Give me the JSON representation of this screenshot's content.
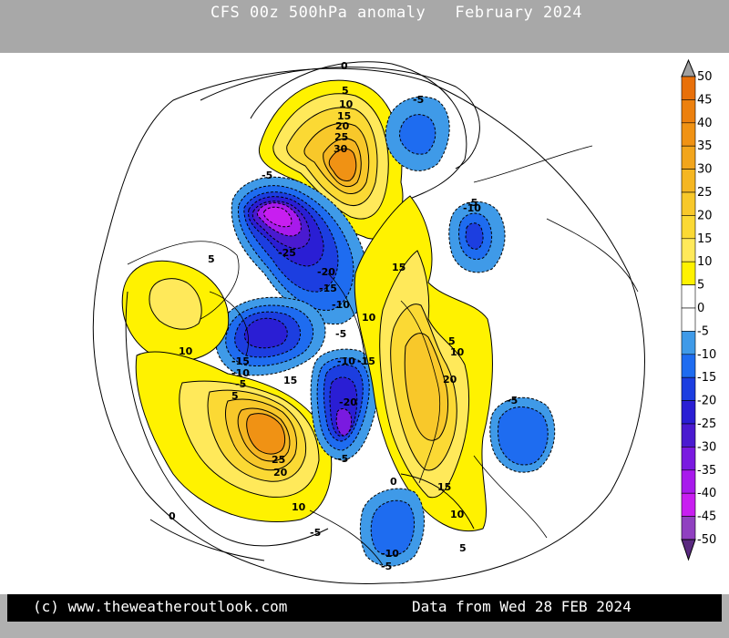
{
  "header": {
    "title": "CFS 00z 500hPa anomaly   February 2024",
    "background": "#a8a8a8"
  },
  "footer": {
    "copyright": "(c) www.theweatheroutlook.com",
    "data_date": "Data from Wed 28 FEB 2024"
  },
  "legend": {
    "levels": [
      {
        "label": "50",
        "color": "#e8700a"
      },
      {
        "label": "45",
        "color": "#ec800e"
      },
      {
        "label": "40",
        "color": "#f09214"
      },
      {
        "label": "35",
        "color": "#f2a51c"
      },
      {
        "label": "30",
        "color": "#f5b622"
      },
      {
        "label": "25",
        "color": "#f8c82a"
      },
      {
        "label": "20",
        "color": "#fbd934"
      },
      {
        "label": "15",
        "color": "#ffe95a"
      },
      {
        "label": "10",
        "color": "#fff200"
      },
      {
        "label": "5",
        "color": "#ffffff"
      },
      {
        "label": "0",
        "color": "#ffffff"
      },
      {
        "label": "-5",
        "color": "#3f9ae8"
      },
      {
        "label": "-10",
        "color": "#1e6cf0"
      },
      {
        "label": "-15",
        "color": "#1c3ee0"
      },
      {
        "label": "-20",
        "color": "#2a1ed4"
      },
      {
        "label": "-25",
        "color": "#4a1ad0"
      },
      {
        "label": "-30",
        "color": "#7a1ae0"
      },
      {
        "label": "-35",
        "color": "#a81aec"
      },
      {
        "label": "-40",
        "color": "#c81ef0"
      },
      {
        "label": "-45",
        "color": "#9040c0"
      },
      {
        "label": "-50",
        "color": "#5a2a80"
      }
    ],
    "top_cap_color": "#a0a0a0",
    "bottom_cap_color": "#5a2a80"
  },
  "contour_labels": [
    {
      "id": "pac-0",
      "text": "0"
    },
    {
      "id": "pac-5",
      "text": "5"
    },
    {
      "id": "pac-10",
      "text": "10"
    },
    {
      "id": "pac-15",
      "text": "15"
    },
    {
      "id": "pac-20",
      "text": "20"
    },
    {
      "id": "pac-25",
      "text": "25"
    },
    {
      "id": "pac-30",
      "text": "30"
    },
    {
      "id": "ber-m5",
      "text": "-5"
    },
    {
      "id": "asia-m5",
      "text": "-5"
    },
    {
      "id": "asia-m10",
      "text": "-10"
    },
    {
      "id": "can-m5",
      "text": "-5"
    },
    {
      "id": "can-m25",
      "text": "-25"
    },
    {
      "id": "can-m20",
      "text": "-20"
    },
    {
      "id": "can-m15",
      "text": "-15"
    },
    {
      "id": "can-m10",
      "text": "-10"
    },
    {
      "id": "eur-15",
      "text": "15"
    },
    {
      "id": "eur-10",
      "text": "10"
    },
    {
      "id": "us-5",
      "text": "5"
    },
    {
      "id": "us-10",
      "text": "10"
    },
    {
      "id": "hud-m15",
      "text": "-15"
    },
    {
      "id": "hud-m10",
      "text": "-10"
    },
    {
      "id": "hud-m5",
      "text": "-5"
    },
    {
      "id": "hud-5",
      "text": "5"
    },
    {
      "id": "atl-15",
      "text": "15"
    },
    {
      "id": "atl-25",
      "text": "25"
    },
    {
      "id": "atl-20",
      "text": "20"
    },
    {
      "id": "atl-10",
      "text": "10"
    },
    {
      "id": "atl-0",
      "text": "0"
    },
    {
      "id": "atl-m5",
      "text": "-5"
    },
    {
      "id": "grl-m5a",
      "text": "-5"
    },
    {
      "id": "grl-m10",
      "text": "-10"
    },
    {
      "id": "grl-m15",
      "text": "-15"
    },
    {
      "id": "grl-m20",
      "text": "-20"
    },
    {
      "id": "grl-m5b",
      "text": "-5"
    },
    {
      "id": "sib-5",
      "text": "5"
    },
    {
      "id": "sib-10",
      "text": "10"
    },
    {
      "id": "sib-20",
      "text": "20"
    },
    {
      "id": "sib-15",
      "text": "15"
    },
    {
      "id": "sib-10b",
      "text": "10"
    },
    {
      "id": "sib-5b",
      "text": "5"
    },
    {
      "id": "sib-0",
      "text": "0"
    },
    {
      "id": "jpn-m5",
      "text": "-5"
    },
    {
      "id": "med-m10",
      "text": "-10"
    },
    {
      "id": "med-m5",
      "text": "-5"
    }
  ]
}
